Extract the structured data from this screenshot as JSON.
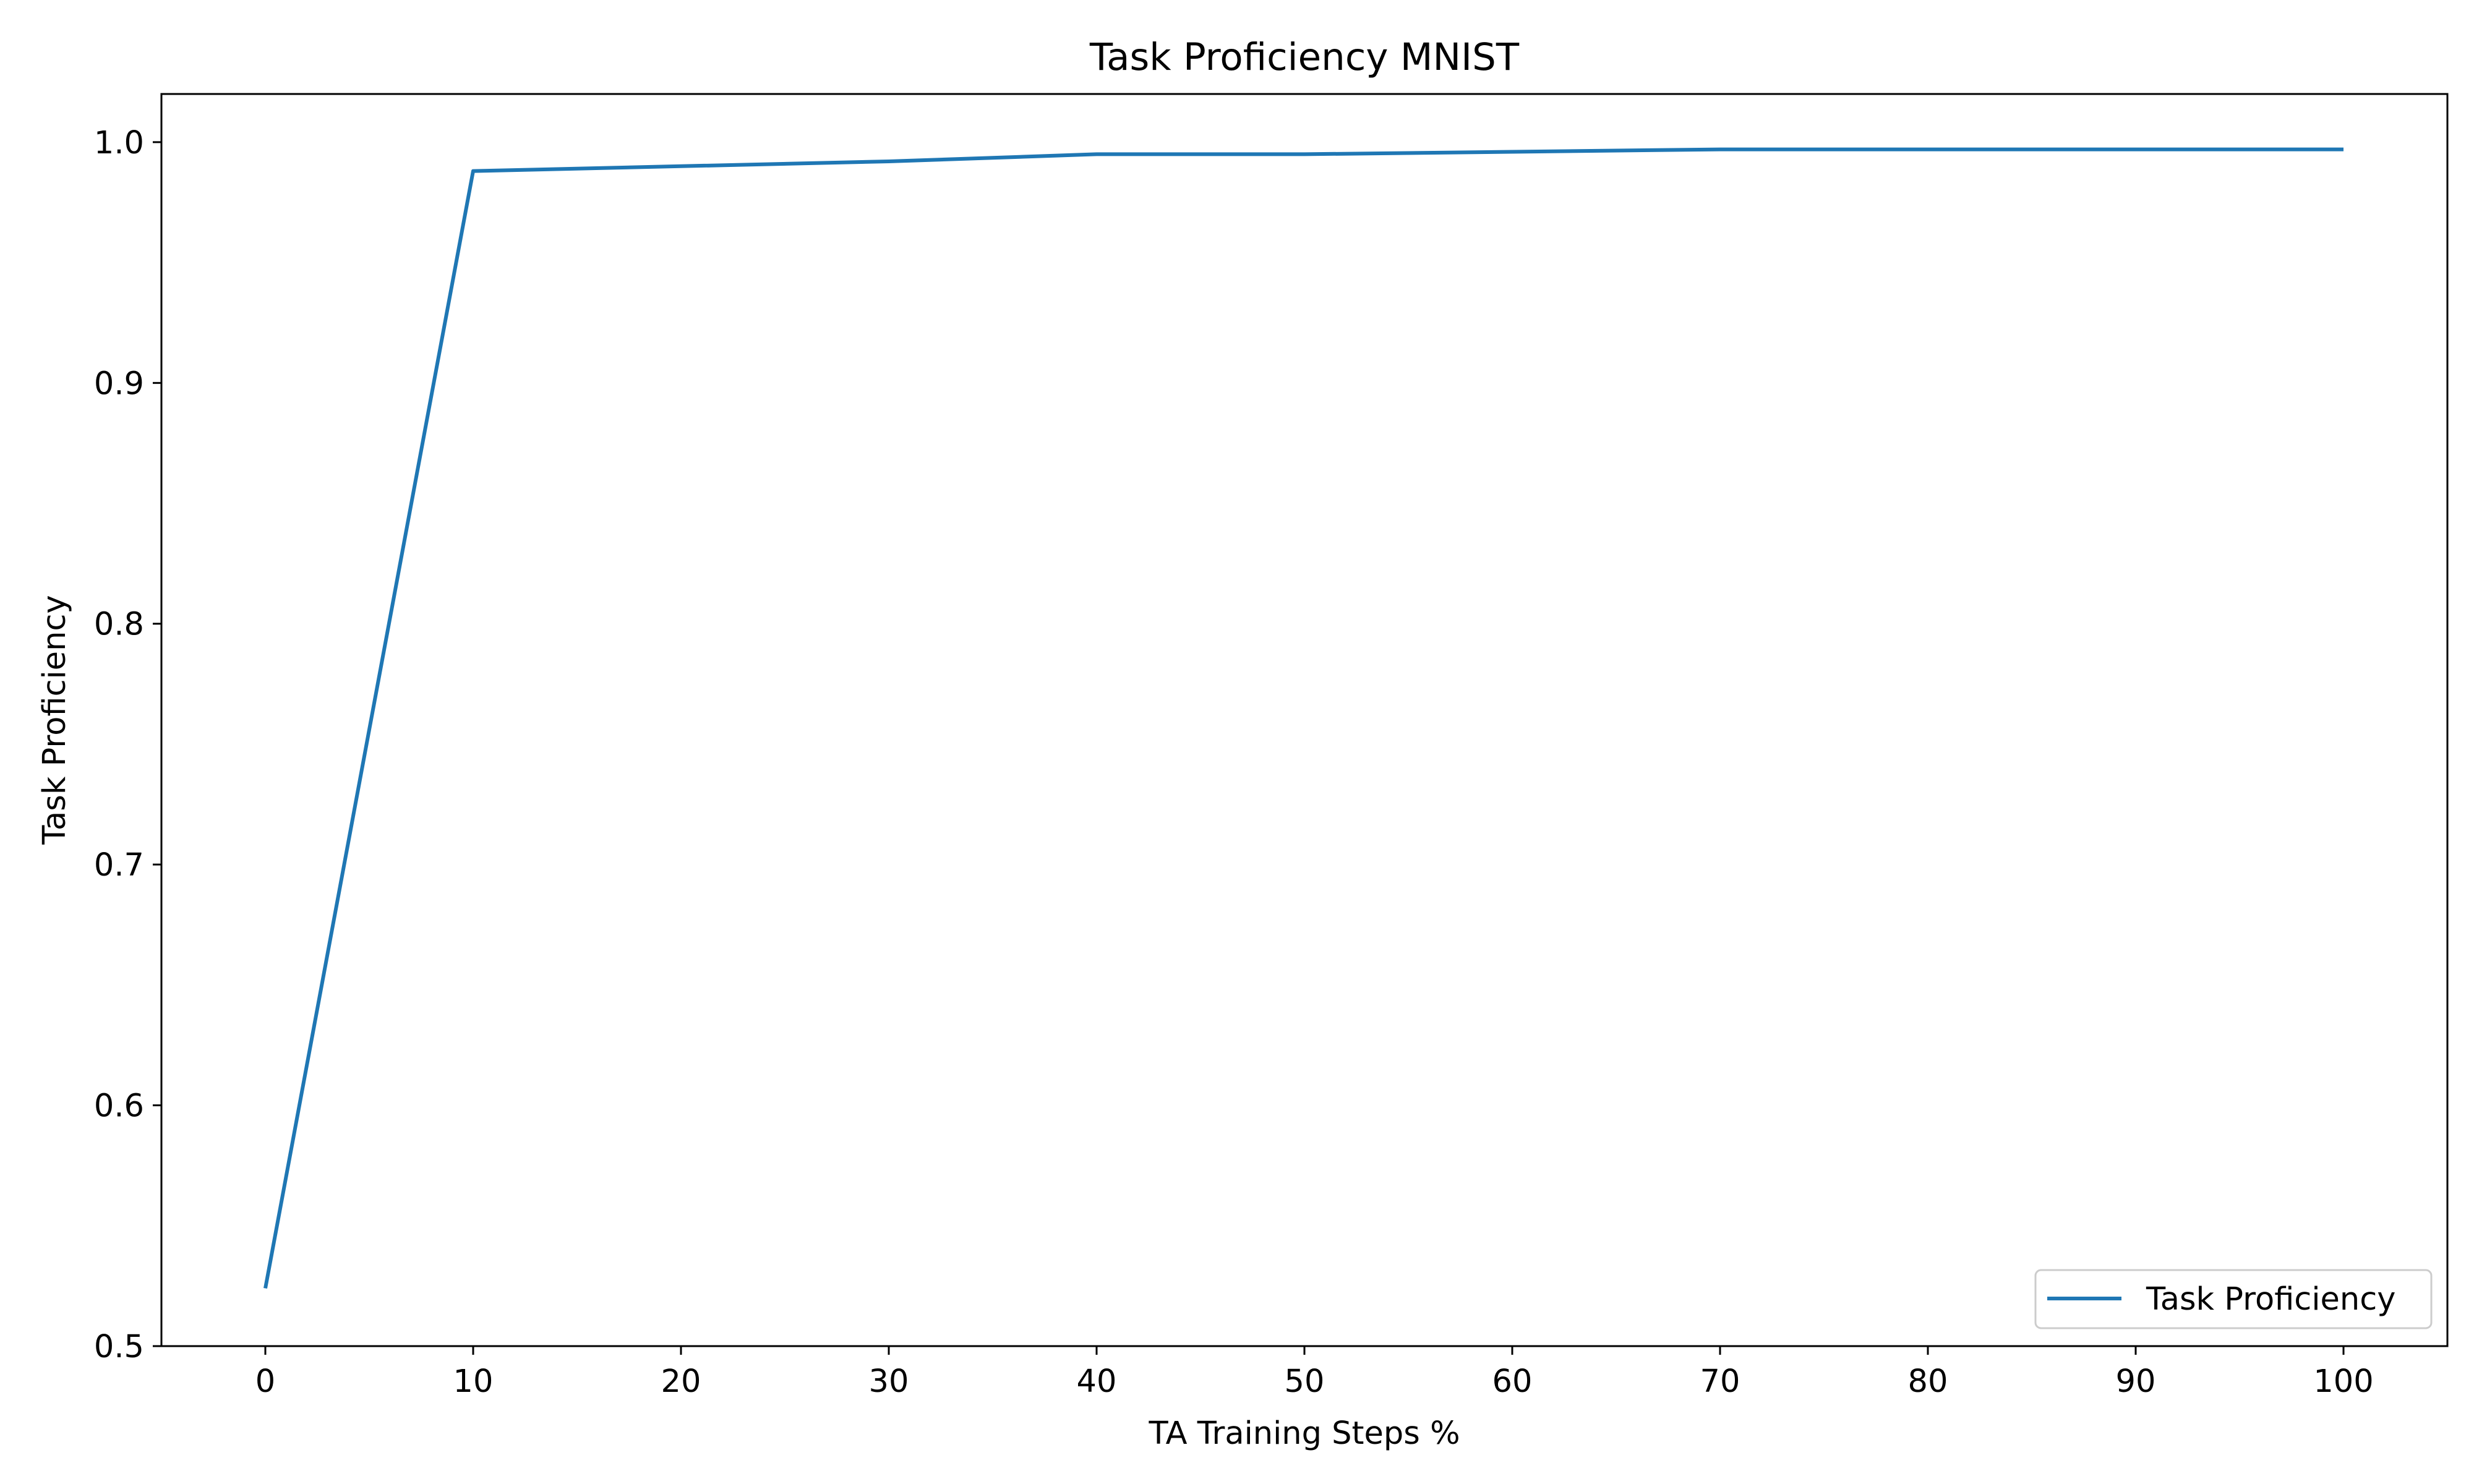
{
  "chart_data": {
    "type": "line",
    "title": "Task Proficiency MNIST",
    "xlabel": "TA Training Steps %",
    "ylabel": "Task Proficiency",
    "xlim": [
      -5,
      105
    ],
    "ylim": [
      0.5,
      1.02
    ],
    "xticks": [
      0,
      10,
      20,
      30,
      40,
      50,
      60,
      70,
      80,
      90,
      100
    ],
    "xtick_labels": [
      "0",
      "10",
      "20",
      "30",
      "40",
      "50",
      "60",
      "70",
      "80",
      "90",
      "100"
    ],
    "yticks": [
      0.5,
      0.6,
      0.7,
      0.8,
      0.9,
      1.0
    ],
    "ytick_labels": [
      "0.5",
      "0.6",
      "0.7",
      "0.8",
      "0.9",
      "1.0"
    ],
    "grid": false,
    "legend_position": "lower-right",
    "series": [
      {
        "name": "Task Proficiency",
        "color": "#1f77b4",
        "x": [
          0,
          10,
          20,
          30,
          40,
          50,
          60,
          70,
          80,
          90,
          100
        ],
        "y": [
          0.524,
          0.988,
          0.99,
          0.992,
          0.995,
          0.995,
          0.996,
          0.997,
          0.997,
          0.997,
          0.997
        ]
      }
    ]
  }
}
